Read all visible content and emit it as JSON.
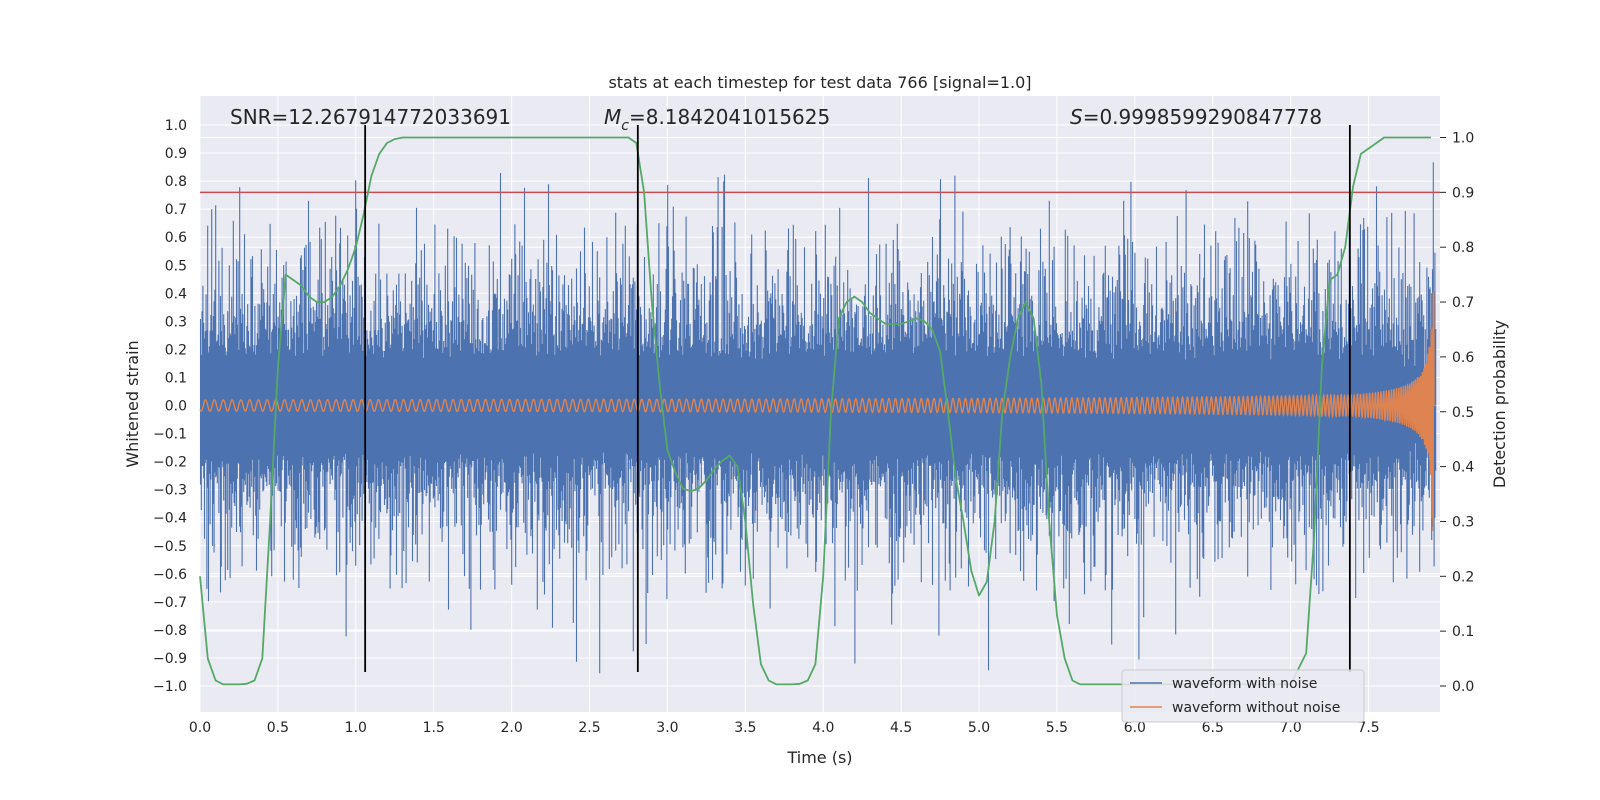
{
  "chart_data": {
    "type": "line",
    "title": "stats at each timestep for test data 766 [signal=1.0]",
    "xlabel": "Time (s)",
    "ylabel": "Whitened strain",
    "y2label": "Detection probability",
    "xlim": [
      0.0,
      8.0
    ],
    "ylim": [
      -1.05,
      1.05
    ],
    "y2lim": [
      -0.05,
      1.05
    ],
    "xticks": [
      0.0,
      0.5,
      1.0,
      1.5,
      2.0,
      2.5,
      3.0,
      3.5,
      4.0,
      4.5,
      5.0,
      5.5,
      6.0,
      6.5,
      7.0,
      7.5
    ],
    "xtick_labels": [
      "0.0",
      "0.5",
      "1.0",
      "1.5",
      "2.0",
      "2.5",
      "3.0",
      "3.5",
      "4.0",
      "4.5",
      "5.0",
      "5.5",
      "6.0",
      "6.5",
      "7.0",
      "7.5"
    ],
    "yticks": [
      1.0,
      0.9,
      0.8,
      0.7,
      0.6,
      0.5,
      0.4,
      0.3,
      0.2,
      0.1,
      0.0,
      -0.1,
      -0.2,
      -0.3,
      -0.4,
      -0.5,
      -0.6,
      -0.7,
      -0.8,
      -0.9,
      -1.0
    ],
    "ytick_labels": [
      "1.0",
      "0.9",
      "0.8",
      "0.7",
      "0.6",
      "0.5",
      "0.4",
      "0.3",
      "0.2",
      "0.1",
      "0.0",
      "−0.1",
      "−0.2",
      "−0.3",
      "−0.4",
      "−0.5",
      "−0.6",
      "−0.7",
      "−0.8",
      "−0.9",
      "−1.0"
    ],
    "y2ticks": [
      1.0,
      0.9,
      0.8,
      0.7,
      0.6,
      0.5,
      0.4,
      0.3,
      0.2,
      0.1,
      0.0
    ],
    "y2tick_labels": [
      "1.0",
      "0.9",
      "0.8",
      "0.7",
      "0.6",
      "0.5",
      "0.4",
      "0.3",
      "0.2",
      "0.1",
      "0.0"
    ],
    "grid": true,
    "threshold": {
      "value": 0.9,
      "axis": "y2",
      "color": "#c44e52"
    },
    "vlines": [
      1.06,
      2.81,
      7.38
    ],
    "vline_range": [
      -0.95,
      1.0
    ],
    "annotations": {
      "snr": "SNR=12.267914772033691",
      "mc_symbol": "M",
      "mc_sub": "c",
      "mc_value": "=8.1842041015625",
      "s_symbol": "S",
      "s_value": "=0.9998599290847778"
    },
    "legend": {
      "position": "lower-right",
      "entries": [
        {
          "label": "waveform with noise",
          "color": "#4c72b0"
        },
        {
          "label": "waveform without noise",
          "color": "#dd8452"
        }
      ]
    },
    "series": [
      {
        "name": "waveform with noise",
        "color": "#4c72b0",
        "style": "dense-noise",
        "base_amplitude": 0.42,
        "peak_amplitude": 0.82
      },
      {
        "name": "waveform without noise",
        "color": "#dd8452",
        "style": "chirp",
        "t_start": 0.0,
        "t_merger": 7.92,
        "amplitude_start": 0.02,
        "amplitude_peak": 0.45
      },
      {
        "name": "detection probability",
        "color": "#55a868",
        "axis": "y2",
        "x": [
          0.0,
          0.05,
          0.1,
          0.15,
          0.2,
          0.25,
          0.3,
          0.35,
          0.4,
          0.45,
          0.5,
          0.55,
          0.6,
          0.65,
          0.7,
          0.75,
          0.8,
          0.85,
          0.9,
          0.95,
          1.0,
          1.05,
          1.1,
          1.15,
          1.2,
          1.25,
          1.3,
          1.35,
          1.4,
          1.5,
          1.6,
          1.8,
          2.0,
          2.2,
          2.4,
          2.6,
          2.7,
          2.75,
          2.8,
          2.85,
          2.9,
          2.95,
          3.0,
          3.05,
          3.1,
          3.15,
          3.2,
          3.25,
          3.3,
          3.35,
          3.4,
          3.45,
          3.5,
          3.55,
          3.6,
          3.65,
          3.7,
          3.75,
          3.8,
          3.85,
          3.9,
          3.95,
          4.0,
          4.05,
          4.1,
          4.15,
          4.2,
          4.25,
          4.3,
          4.35,
          4.4,
          4.45,
          4.5,
          4.55,
          4.6,
          4.65,
          4.7,
          4.75,
          4.8,
          4.85,
          4.9,
          4.95,
          5.0,
          5.05,
          5.1,
          5.15,
          5.2,
          5.25,
          5.3,
          5.35,
          5.4,
          5.45,
          5.5,
          5.55,
          5.6,
          5.65,
          5.7,
          6.0,
          6.5,
          7.0,
          7.1,
          7.15,
          7.2,
          7.25,
          7.3,
          7.35,
          7.4,
          7.45,
          7.5,
          7.55,
          7.6,
          7.7,
          7.8,
          7.9
        ],
        "y": [
          0.2,
          0.05,
          0.01,
          0.003,
          0.003,
          0.003,
          0.004,
          0.01,
          0.05,
          0.3,
          0.58,
          0.75,
          0.74,
          0.73,
          0.71,
          0.7,
          0.7,
          0.71,
          0.73,
          0.76,
          0.8,
          0.86,
          0.93,
          0.97,
          0.99,
          0.997,
          1.0,
          1.0,
          1.0,
          1.0,
          1.0,
          1.0,
          1.0,
          1.0,
          1.0,
          1.0,
          1.0,
          1.0,
          0.99,
          0.9,
          0.7,
          0.55,
          0.43,
          0.39,
          0.36,
          0.355,
          0.36,
          0.375,
          0.395,
          0.41,
          0.42,
          0.4,
          0.3,
          0.15,
          0.04,
          0.01,
          0.003,
          0.003,
          0.003,
          0.004,
          0.01,
          0.04,
          0.2,
          0.5,
          0.67,
          0.7,
          0.71,
          0.7,
          0.68,
          0.67,
          0.66,
          0.66,
          0.66,
          0.665,
          0.67,
          0.665,
          0.65,
          0.61,
          0.5,
          0.38,
          0.3,
          0.21,
          0.165,
          0.19,
          0.3,
          0.5,
          0.6,
          0.67,
          0.7,
          0.67,
          0.55,
          0.3,
          0.13,
          0.05,
          0.01,
          0.003,
          0.003,
          0.003,
          0.003,
          0.003,
          0.06,
          0.27,
          0.58,
          0.74,
          0.75,
          0.8,
          0.91,
          0.97,
          0.98,
          0.99,
          1.0,
          1.0,
          1.0,
          1.0
        ]
      }
    ]
  }
}
